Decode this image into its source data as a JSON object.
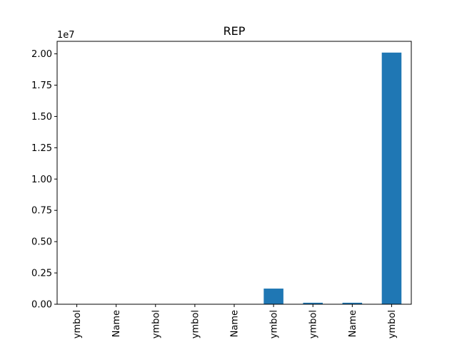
{
  "chart_data": {
    "type": "bar",
    "title": "REP",
    "categories": [
      "ymbol",
      "Name",
      "ymbol",
      "ymbol",
      "Name",
      "ymbol",
      "ymbol",
      "Name",
      "ymbol"
    ],
    "values": [
      0,
      0,
      0,
      0,
      0,
      1250000,
      120000,
      120000,
      20100000
    ],
    "ylim": [
      0,
      21000000
    ],
    "y_offset_label": "1e7",
    "y_ticks": [
      0,
      2500000,
      5000000,
      7500000,
      10000000,
      12500000,
      15000000,
      17500000,
      20000000
    ],
    "y_tick_labels": [
      "0.00",
      "0.25",
      "0.50",
      "0.75",
      "1.00",
      "1.25",
      "1.50",
      "1.75",
      "2.00"
    ],
    "xlabel": "",
    "ylabel": "",
    "grid": false,
    "bar_color": "#1f77b4"
  }
}
